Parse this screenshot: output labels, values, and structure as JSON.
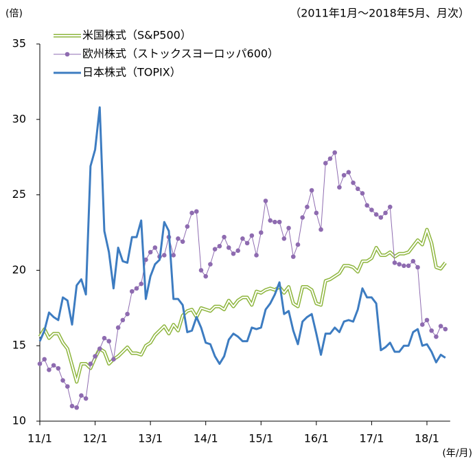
{
  "chart_data": {
    "type": "line",
    "subtitle": "（2011年1月～2018年5月、月次）",
    "y_label": "(倍)",
    "x_label": "(年/月)",
    "legend": "top-left",
    "grid": false,
    "ylim": [
      10,
      35
    ],
    "yticks": [
      10,
      15,
      20,
      25,
      30,
      35
    ],
    "categories": [
      "11/1",
      null,
      null,
      null,
      null,
      null,
      null,
      null,
      null,
      null,
      null,
      null,
      "12/1",
      null,
      null,
      null,
      null,
      null,
      null,
      null,
      null,
      null,
      null,
      null,
      "13/1",
      null,
      null,
      null,
      null,
      null,
      null,
      null,
      null,
      null,
      null,
      null,
      "14/1",
      null,
      null,
      null,
      null,
      null,
      null,
      null,
      null,
      null,
      null,
      null,
      "15/1",
      null,
      null,
      null,
      null,
      null,
      null,
      null,
      null,
      null,
      null,
      null,
      "16/1",
      null,
      null,
      null,
      null,
      null,
      null,
      null,
      null,
      null,
      null,
      null,
      "17/1",
      null,
      null,
      null,
      null,
      null,
      null,
      null,
      null,
      null,
      null,
      null,
      "18/1",
      null,
      null,
      null,
      null
    ],
    "series": [
      {
        "name": "米国株式（S&P500）",
        "color": "#8db53c",
        "style": "double",
        "values": [
          15.6,
          16.1,
          15.5,
          15.8,
          15.8,
          15.2,
          14.8,
          13.7,
          12.6,
          13.8,
          13.8,
          13.5,
          14.2,
          14.8,
          14.6,
          13.8,
          14.1,
          14.3,
          14.6,
          14.9,
          14.5,
          14.5,
          14.4,
          15.0,
          15.2,
          15.7,
          16.0,
          16.3,
          15.8,
          16.4,
          16.0,
          17.0,
          17.3,
          17.4,
          16.9,
          17.5,
          17.4,
          17.3,
          17.6,
          17.6,
          17.4,
          18.0,
          17.6,
          18.0,
          18.2,
          18.2,
          17.7,
          18.6,
          18.5,
          18.7,
          18.8,
          18.7,
          18.9,
          18.5,
          18.9,
          17.8,
          17.6,
          18.9,
          18.9,
          18.7,
          17.8,
          17.7,
          19.3,
          19.4,
          19.6,
          19.8,
          20.3,
          20.3,
          20.2,
          19.9,
          20.6,
          20.6,
          20.8,
          21.5,
          21.0,
          21.0,
          21.2,
          20.9,
          21.1,
          21.1,
          21.2,
          21.6,
          22.0,
          21.7,
          22.7,
          21.8,
          20.2,
          20.1,
          20.5
        ]
      },
      {
        "name": "欧州株式（ストックスヨーロッパ600）",
        "color": "#8e6bb0",
        "style": "markers",
        "values": [
          13.8,
          14.1,
          13.4,
          13.7,
          13.5,
          12.7,
          12.3,
          11.0,
          10.9,
          11.7,
          11.5,
          13.8,
          14.3,
          14.8,
          15.5,
          15.3,
          14.1,
          16.2,
          16.7,
          17.1,
          18.6,
          18.8,
          19.1,
          20.7,
          21.2,
          21.5,
          20.9,
          21.0,
          22.2,
          21.0,
          22.1,
          21.9,
          22.9,
          23.8,
          23.9,
          20.0,
          19.6,
          20.4,
          21.4,
          21.6,
          22.2,
          21.5,
          21.1,
          21.3,
          22.1,
          21.8,
          22.3,
          21.0,
          22.5,
          24.6,
          23.3,
          23.2,
          23.2,
          22.1,
          22.8,
          20.9,
          21.7,
          23.5,
          24.2,
          25.3,
          23.8,
          22.7,
          27.1,
          27.4,
          27.8,
          25.5,
          26.3,
          26.5,
          25.8,
          25.4,
          25.1,
          24.3,
          24.0,
          23.7,
          23.5,
          23.8,
          24.2,
          20.5,
          20.4,
          20.3,
          20.3,
          20.6,
          20.2,
          16.4,
          16.7,
          16.0,
          15.6,
          16.3,
          16.1
        ]
      },
      {
        "name": "日本株式（TOPIX）",
        "color": "#3d7cc1",
        "style": "solid",
        "values": [
          15.3,
          16.0,
          17.2,
          16.9,
          16.7,
          18.2,
          18.0,
          16.4,
          19.0,
          19.4,
          18.4,
          26.9,
          28.0,
          30.8,
          22.6,
          21.2,
          18.8,
          21.5,
          20.6,
          20.5,
          22.2,
          22.2,
          23.3,
          18.1,
          19.6,
          20.4,
          20.7,
          23.2,
          22.6,
          18.1,
          18.1,
          17.7,
          15.9,
          16.0,
          16.9,
          16.2,
          15.2,
          15.1,
          14.3,
          13.8,
          14.3,
          15.4,
          15.8,
          15.6,
          15.3,
          15.3,
          16.2,
          16.1,
          16.2,
          17.4,
          17.8,
          18.4,
          19.2,
          17.1,
          17.3,
          16.0,
          15.1,
          16.6,
          16.9,
          17.1,
          15.8,
          14.4,
          15.8,
          15.8,
          16.2,
          15.9,
          16.6,
          16.7,
          16.6,
          17.4,
          18.8,
          18.2,
          18.2,
          17.8,
          14.7,
          14.9,
          15.2,
          14.6,
          14.6,
          15.0,
          15.0,
          15.9,
          16.1,
          15.0,
          15.1,
          14.6,
          13.9,
          14.4,
          14.2
        ]
      }
    ]
  }
}
